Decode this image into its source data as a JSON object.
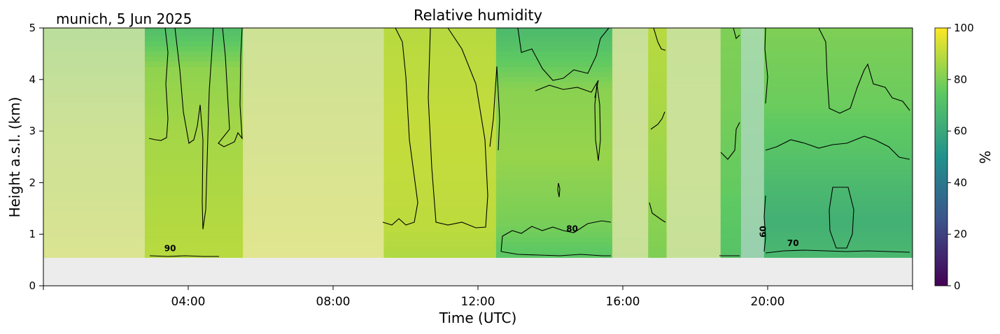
{
  "chart_data": {
    "type": "heatmap",
    "title": "Relative humidity",
    "subtitle": "munich, 5 Jun 2025",
    "xlabel": "Time (UTC)",
    "ylabel": "Height a.s.l. (km)",
    "xlim_hours": [
      0,
      24
    ],
    "ylim": [
      0,
      5
    ],
    "x_ticks": [
      {
        "hour": 4,
        "label": "04:00"
      },
      {
        "hour": 8,
        "label": "08:00"
      },
      {
        "hour": 12,
        "label": "12:00"
      },
      {
        "hour": 16,
        "label": "16:00"
      },
      {
        "hour": 20,
        "label": "20:00"
      }
    ],
    "y_ticks": [
      0,
      1,
      2,
      3,
      4,
      5
    ],
    "data_bottom_km": 0.55,
    "colorbar": {
      "label": "%",
      "range": [
        0,
        100
      ],
      "ticks": [
        0,
        20,
        40,
        60,
        80,
        100
      ],
      "colormap": [
        "#440154",
        "#3b528b",
        "#21918c",
        "#5ec962",
        "#fde725"
      ]
    },
    "contour_labels": [
      {
        "text": "90",
        "hour": 3.5,
        "km": 0.67
      },
      {
        "text": "80",
        "hour": 14.6,
        "km": 1.05
      },
      {
        "text": "60",
        "hour": 19.95,
        "km": 1.05
      },
      {
        "text": "70",
        "hour": 20.7,
        "km": 0.77
      }
    ],
    "segments": [
      {
        "start": 0.0,
        "end": 2.8,
        "masked": true,
        "profile": [
          [
            0.6,
            92
          ],
          [
            1.5,
            90
          ],
          [
            3.0,
            88
          ],
          [
            5.0,
            82
          ]
        ]
      },
      {
        "start": 2.8,
        "end": 5.5,
        "masked": false,
        "profile": [
          [
            0.6,
            89
          ],
          [
            1.5,
            88
          ],
          [
            3.0,
            86
          ],
          [
            4.2,
            83
          ],
          [
            5.0,
            70
          ]
        ]
      },
      {
        "start": 5.5,
        "end": 9.4,
        "masked": true,
        "profile": [
          [
            0.6,
            94
          ],
          [
            2.0,
            92
          ],
          [
            3.5,
            90
          ],
          [
            5.0,
            88
          ]
        ]
      },
      {
        "start": 9.4,
        "end": 12.5,
        "masked": false,
        "profile": [
          [
            0.6,
            88
          ],
          [
            1.2,
            90
          ],
          [
            3.0,
            91
          ],
          [
            5.0,
            89
          ]
        ]
      },
      {
        "start": 12.5,
        "end": 15.7,
        "masked": false,
        "profile": [
          [
            0.6,
            74
          ],
          [
            1.2,
            79
          ],
          [
            2.5,
            84
          ],
          [
            3.8,
            82
          ],
          [
            4.8,
            70
          ],
          [
            5.0,
            68
          ]
        ]
      },
      {
        "start": 15.7,
        "end": 16.7,
        "masked": true,
        "profile": [
          [
            0.6,
            86
          ],
          [
            2.5,
            88
          ],
          [
            5.0,
            86
          ]
        ]
      },
      {
        "start": 16.7,
        "end": 17.2,
        "masked": false,
        "profile": [
          [
            0.6,
            80
          ],
          [
            2.0,
            84
          ],
          [
            3.5,
            87
          ],
          [
            5.0,
            89
          ]
        ]
      },
      {
        "start": 17.2,
        "end": 18.7,
        "masked": true,
        "profile": [
          [
            0.6,
            86
          ],
          [
            2.5,
            87
          ],
          [
            5.0,
            86
          ]
        ]
      },
      {
        "start": 18.7,
        "end": 19.25,
        "masked": false,
        "profile": [
          [
            0.6,
            72
          ],
          [
            2.0,
            76
          ],
          [
            3.5,
            79
          ],
          [
            5.0,
            80
          ]
        ]
      },
      {
        "start": 19.25,
        "end": 19.9,
        "masked": true,
        "profile": [
          [
            0.6,
            66
          ],
          [
            2.0,
            70
          ],
          [
            5.0,
            75
          ]
        ]
      },
      {
        "start": 19.9,
        "end": 24.0,
        "masked": false,
        "profile": [
          [
            0.6,
            67
          ],
          [
            1.3,
            64
          ],
          [
            2.0,
            68
          ],
          [
            2.6,
            72
          ],
          [
            3.5,
            77
          ],
          [
            4.5,
            79
          ],
          [
            5.0,
            80
          ]
        ]
      }
    ]
  }
}
